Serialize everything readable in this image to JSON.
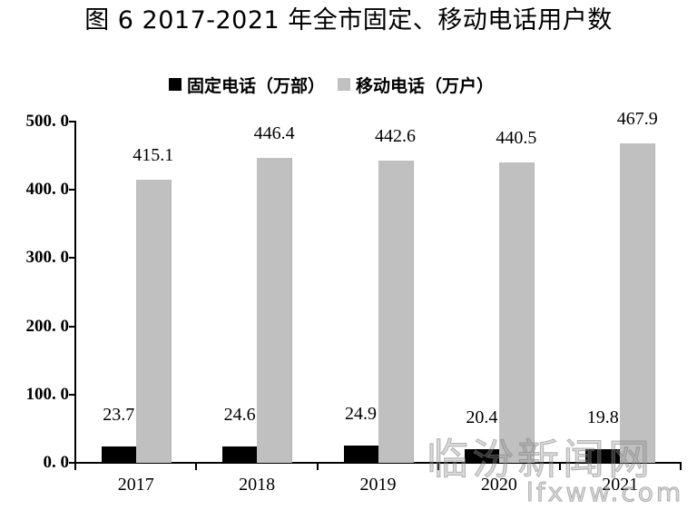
{
  "title": "图 6   2017-2021 年全市固定、移动电话用户数",
  "legend": {
    "fixed_label": "固定电话（万部）",
    "mobile_label": "移动电话（万户）",
    "fixed_color": "#000000",
    "mobile_color": "#c0c0c0"
  },
  "y_axis": {
    "ticks": [
      "500. 0",
      "400. 0",
      "300. 0",
      "200. 0",
      "100. 0",
      "0. 0"
    ]
  },
  "watermark": {
    "cn": "临汾新闻网",
    "en": "lfxww.com"
  },
  "chart_data": {
    "type": "bar",
    "title": "图 6 2017-2021 年全市固定、移动电话用户数",
    "xlabel": "",
    "ylabel": "",
    "categories": [
      "2017",
      "2018",
      "2019",
      "2020",
      "2021"
    ],
    "series": [
      {
        "name": "固定电话（万部）",
        "color": "#000000",
        "values": [
          23.7,
          24.6,
          24.9,
          20.4,
          19.8
        ],
        "labels": [
          "23.7",
          "24.6",
          "24.9",
          "20.4",
          "19.8"
        ]
      },
      {
        "name": "移动电话（万户）",
        "color": "#c0c0c0",
        "values": [
          415.1,
          446.4,
          442.6,
          440.5,
          467.9
        ],
        "labels": [
          "415.1",
          "446.4",
          "442.6",
          "440.5",
          "467.9"
        ]
      }
    ],
    "ylim": [
      0,
      500
    ],
    "yticks": [
      0,
      100,
      200,
      300,
      400,
      500
    ],
    "grid": false,
    "legend_position": "top"
  }
}
